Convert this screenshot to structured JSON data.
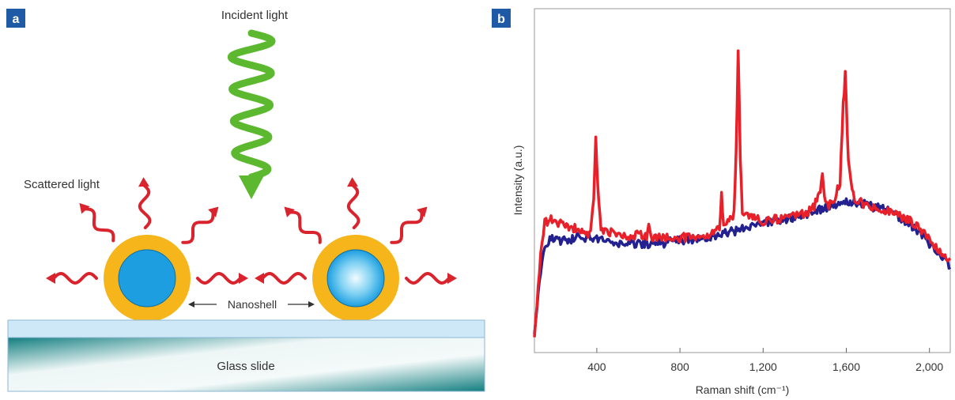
{
  "panel_a": {
    "badge": "a",
    "incident_label": "Incident light",
    "scattered_label": "Scattered light",
    "nanoshell_label": "Nanoshell",
    "glass_label": "Glass slide"
  },
  "panel_b": {
    "badge": "b"
  },
  "colors": {
    "badge_bg": "#1f5aa6",
    "incident_arrow": "#5cb82e",
    "scatter_arrow": "#d9232d",
    "shell_gold": "#f5b51b",
    "core_blue": "#1d9ee0",
    "core_light": "#e6f6ff",
    "slide_top": "#cfe8f7",
    "slide_teal": "#127e80",
    "spectrum_red": "#e8202a",
    "spectrum_blue": "#23208f"
  },
  "chart_data": {
    "type": "line",
    "xlabel": "Raman shift (cm⁻¹)",
    "ylabel": "Intensity (a.u.)",
    "xlim": [
      100,
      2100
    ],
    "ylim": [
      0,
      1
    ],
    "xticks": [
      400,
      800,
      1200,
      1600,
      2000
    ],
    "xtick_labels": [
      "400",
      "800",
      "1,200",
      "1,600",
      "2,000"
    ],
    "grid": false,
    "series": [
      {
        "color": "#e8202a",
        "x": [
          100,
          130,
          150,
          180,
          220,
          260,
          300,
          340,
          370,
          385,
          395,
          405,
          420,
          450,
          500,
          550,
          600,
          640,
          650,
          660,
          700,
          750,
          800,
          850,
          900,
          950,
          990,
          1000,
          1010,
          1030,
          1060,
          1070,
          1080,
          1090,
          1100,
          1120,
          1150,
          1200,
          1250,
          1300,
          1350,
          1400,
          1440,
          1470,
          1485,
          1495,
          1510,
          1540,
          1570,
          1585,
          1595,
          1610,
          1640,
          1700,
          1750,
          1800,
          1850,
          1900,
          1950,
          2000,
          2050,
          2100
        ],
        "y": [
          0.0,
          0.28,
          0.38,
          0.39,
          0.38,
          0.37,
          0.36,
          0.34,
          0.34,
          0.45,
          0.68,
          0.5,
          0.36,
          0.35,
          0.34,
          0.33,
          0.34,
          0.33,
          0.37,
          0.33,
          0.33,
          0.33,
          0.33,
          0.33,
          0.34,
          0.34,
          0.36,
          0.47,
          0.38,
          0.38,
          0.41,
          0.62,
          0.97,
          0.6,
          0.41,
          0.4,
          0.4,
          0.38,
          0.39,
          0.4,
          0.41,
          0.41,
          0.43,
          0.47,
          0.54,
          0.46,
          0.44,
          0.45,
          0.52,
          0.78,
          0.88,
          0.58,
          0.46,
          0.44,
          0.43,
          0.42,
          0.41,
          0.39,
          0.36,
          0.32,
          0.28,
          0.26
        ]
      },
      {
        "color": "#23208f",
        "x": [
          100,
          130,
          150,
          180,
          220,
          260,
          300,
          350,
          400,
          450,
          500,
          600,
          700,
          800,
          900,
          1000,
          1100,
          1200,
          1300,
          1400,
          1500,
          1550,
          1600,
          1650,
          1700,
          1800,
          1900,
          2000,
          2050,
          2100
        ],
        "y": [
          0.0,
          0.22,
          0.3,
          0.33,
          0.32,
          0.32,
          0.33,
          0.33,
          0.33,
          0.32,
          0.31,
          0.31,
          0.31,
          0.32,
          0.33,
          0.34,
          0.36,
          0.38,
          0.39,
          0.41,
          0.43,
          0.44,
          0.45,
          0.45,
          0.44,
          0.42,
          0.38,
          0.31,
          0.27,
          0.23
        ]
      }
    ]
  }
}
